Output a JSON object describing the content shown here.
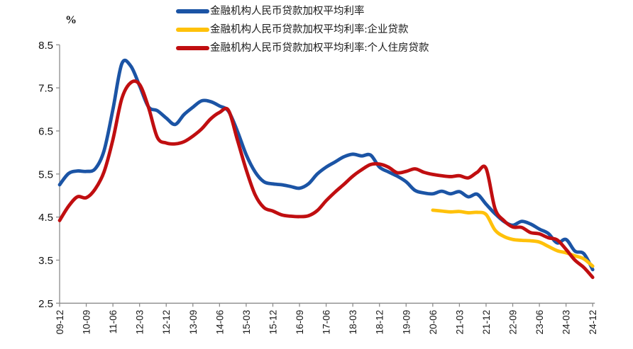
{
  "unit_label": "%",
  "colors": {
    "blue": "#1B54A5",
    "yellow": "#FFC10A",
    "red": "#C00E10",
    "axis": "#8C8C8C",
    "tick_text": "#1a1a1a"
  },
  "legend": [
    {
      "label": "金融机构人民币贷款加权平均利率",
      "color_key": "blue"
    },
    {
      "label": "金融机构人民币贷款加权平均利率:企业贷款",
      "color_key": "yellow"
    },
    {
      "label": "金融机构人民币贷款加权平均利率:个人住房贷款",
      "color_key": "red"
    }
  ],
  "chart_data": {
    "type": "line",
    "title": "",
    "xlabel": "",
    "ylabel": "%",
    "ylim": [
      2.5,
      8.5
    ],
    "y_ticks": [
      2.5,
      3.5,
      4.5,
      5.5,
      6.5,
      7.5,
      8.5
    ],
    "x_tick_step": 3,
    "grid": false,
    "legend_position": "top",
    "x": [
      "09-12",
      "10-03",
      "10-06",
      "10-09",
      "10-12",
      "11-03",
      "11-06",
      "11-09",
      "11-12",
      "12-03",
      "12-06",
      "12-09",
      "12-12",
      "13-03",
      "13-06",
      "13-09",
      "13-12",
      "14-03",
      "14-06",
      "14-09",
      "14-12",
      "15-03",
      "15-06",
      "15-09",
      "15-12",
      "16-03",
      "16-06",
      "16-09",
      "16-12",
      "17-03",
      "17-06",
      "17-09",
      "17-12",
      "18-03",
      "18-06",
      "18-09",
      "18-12",
      "19-03",
      "19-06",
      "19-09",
      "19-12",
      "20-03",
      "20-06",
      "20-09",
      "20-12",
      "21-03",
      "21-06",
      "21-09",
      "21-12",
      "22-03",
      "22-06",
      "22-09",
      "22-12",
      "23-03",
      "23-06",
      "23-09",
      "23-12",
      "24-03",
      "24-06",
      "24-09",
      "24-12"
    ],
    "series": [
      {
        "name": "金融机构人民币贷款加权平均利率",
        "color_key": "blue",
        "values": [
          5.25,
          5.51,
          5.57,
          5.56,
          5.62,
          6.04,
          7.0,
          8.06,
          8.01,
          7.55,
          7.06,
          6.97,
          6.8,
          6.65,
          6.88,
          7.05,
          7.2,
          7.18,
          7.08,
          6.96,
          6.5,
          5.95,
          5.55,
          5.32,
          5.27,
          5.25,
          5.21,
          5.17,
          5.27,
          5.5,
          5.66,
          5.78,
          5.9,
          5.96,
          5.92,
          5.94,
          5.66,
          5.55,
          5.45,
          5.32,
          5.12,
          5.06,
          5.04,
          5.1,
          5.04,
          5.09,
          4.97,
          5.03,
          4.8,
          4.58,
          4.4,
          4.31,
          4.4,
          4.34,
          4.22,
          4.12,
          3.9,
          3.98,
          3.71,
          3.65,
          3.28
        ]
      },
      {
        "name": "金融机构人民币贷款加权平均利率:企业贷款",
        "color_key": "yellow",
        "values": [
          null,
          null,
          null,
          null,
          null,
          null,
          null,
          null,
          null,
          null,
          null,
          null,
          null,
          null,
          null,
          null,
          null,
          null,
          null,
          null,
          null,
          null,
          null,
          null,
          null,
          null,
          null,
          null,
          null,
          null,
          null,
          null,
          null,
          null,
          null,
          null,
          null,
          null,
          null,
          null,
          null,
          null,
          4.66,
          4.64,
          4.62,
          4.63,
          4.6,
          4.61,
          4.56,
          4.2,
          4.05,
          3.98,
          3.96,
          3.95,
          3.92,
          3.82,
          3.72,
          3.67,
          3.6,
          3.53,
          3.36
        ]
      },
      {
        "name": "金融机构人民币贷款加权平均利率:个人住房贷款",
        "color_key": "red",
        "values": [
          4.42,
          4.75,
          4.97,
          4.95,
          5.15,
          5.55,
          6.3,
          7.25,
          7.62,
          7.58,
          7.05,
          6.35,
          6.22,
          6.2,
          6.25,
          6.38,
          6.55,
          6.78,
          6.93,
          6.98,
          6.3,
          5.6,
          5.02,
          4.72,
          4.64,
          4.55,
          4.52,
          4.51,
          4.53,
          4.65,
          4.88,
          5.08,
          5.26,
          5.45,
          5.6,
          5.72,
          5.73,
          5.66,
          5.53,
          5.56,
          5.62,
          5.54,
          5.49,
          5.46,
          5.44,
          5.46,
          5.41,
          5.54,
          5.63,
          4.7,
          4.42,
          4.27,
          4.26,
          4.14,
          4.11,
          4.02,
          3.97,
          3.75,
          3.5,
          3.33,
          3.1
        ]
      }
    ]
  }
}
